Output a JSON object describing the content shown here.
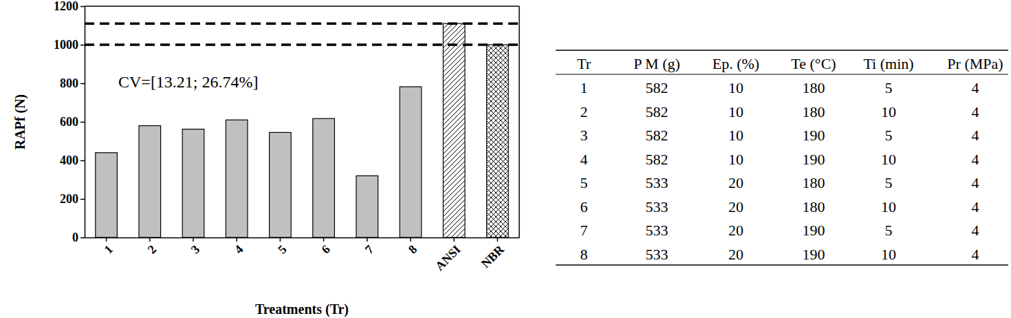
{
  "chart_data": {
    "type": "bar",
    "x_label": "Treatments (Tr)",
    "y_label": "RAPf (N)",
    "annotation": "CV=[13.21; 26.74%]",
    "categories": [
      "1",
      "2",
      "3",
      "4",
      "5",
      "6",
      "7",
      "8",
      "ANSI",
      "NBR"
    ],
    "values": [
      440,
      580,
      562,
      610,
      545,
      617,
      320,
      782,
      1110,
      1000
    ],
    "colors": [
      "#c0c0c0",
      "#c0c0c0",
      "#c0c0c0",
      "#c0c0c0",
      "#c0c0c0",
      "#c0c0c0",
      "#c0c0c0",
      "#c0c0c0",
      "#ffffff",
      "#ffffff"
    ],
    "reference_lines": [
      1110,
      1000
    ],
    "ylim": [
      0,
      1200
    ],
    "yticks": [
      0,
      200,
      400,
      600,
      800,
      1000,
      1200
    ],
    "grid": false
  },
  "table": {
    "columns": [
      "Tr",
      "P M (g)",
      "Ep. (%)",
      "Te (°C)",
      "Ti (min)",
      "Pr (MPa)"
    ],
    "rows": [
      [
        1,
        582,
        10,
        180,
        5,
        4
      ],
      [
        2,
        582,
        10,
        180,
        10,
        4
      ],
      [
        3,
        582,
        10,
        190,
        5,
        4
      ],
      [
        4,
        582,
        10,
        190,
        10,
        4
      ],
      [
        5,
        533,
        20,
        180,
        5,
        4
      ],
      [
        6,
        533,
        20,
        180,
        10,
        4
      ],
      [
        7,
        533,
        20,
        190,
        5,
        4
      ],
      [
        8,
        533,
        20,
        190,
        10,
        4
      ]
    ]
  }
}
